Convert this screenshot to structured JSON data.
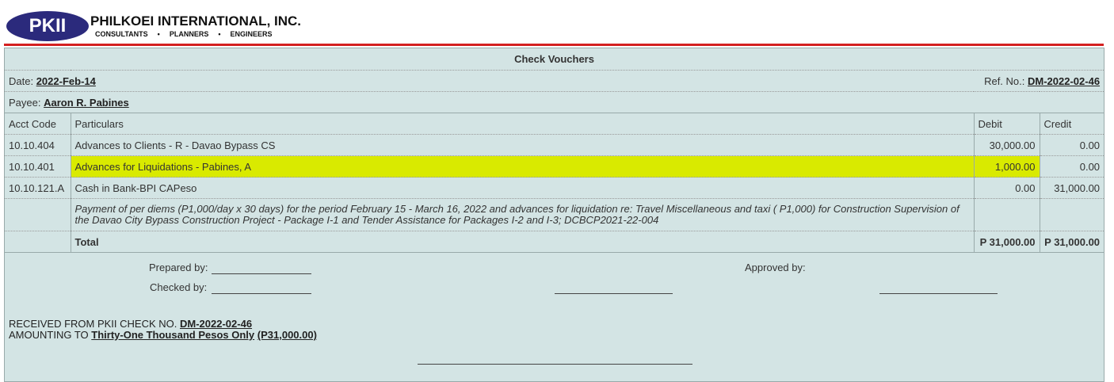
{
  "header": {
    "logo": "PKII",
    "company": "PHILKOEI INTERNATIONAL, INC.",
    "tagline": [
      "CONSULTANTS",
      "PLANNERS",
      "ENGINEERS"
    ]
  },
  "voucher": {
    "title": "Check Vouchers",
    "date_label": "Date:",
    "date": "2022-Feb-14",
    "ref_label": "Ref. No.:",
    "ref": "DM-2022-02-46",
    "payee_label": "Payee:",
    "payee": "Aaron R. Pabines"
  },
  "table": {
    "headers": [
      "Acct Code",
      "Particulars",
      "Debit",
      "Credit"
    ],
    "rows": [
      [
        "10.10.404",
        "Advances to Clients - R - Davao Bypass CS",
        "30,000.00",
        "0.00"
      ],
      [
        "10.10.401",
        "Advances for Liquidations - Pabines, A",
        "1,000.00",
        "0.00"
      ],
      [
        "10.10.121.A",
        "Cash in Bank-BPI CAPeso",
        "0.00",
        "31,000.00"
      ]
    ],
    "description": "Payment of per diems (P1,000/day x 30 days) for the period February 15 - March 16, 2022 and advances for liquidation re: Travel Miscellaneous and taxi ( P1,000) for Construction Supervision of the Davao City Bypass Construction Project - Package I-1 and Tender Assistance for Packages I-2 and I-3; DCBCP2021-22-004",
    "total": {
      "label": "Total",
      "debit": "P 31,000.00",
      "credit": "P 31,000.00"
    }
  },
  "signatures": {
    "prepared": "Prepared by:",
    "checked": "Checked by:",
    "approved": "Approved by:"
  },
  "receipt": {
    "received_label": "RECEIVED FROM PKII CHECK NO.",
    "check_no": "DM-2022-02-46",
    "amount_label": "AMOUNTING TO",
    "amount_words": "Thirty-One Thousand Pesos Only",
    "amount": "(P31,000.00)"
  }
}
